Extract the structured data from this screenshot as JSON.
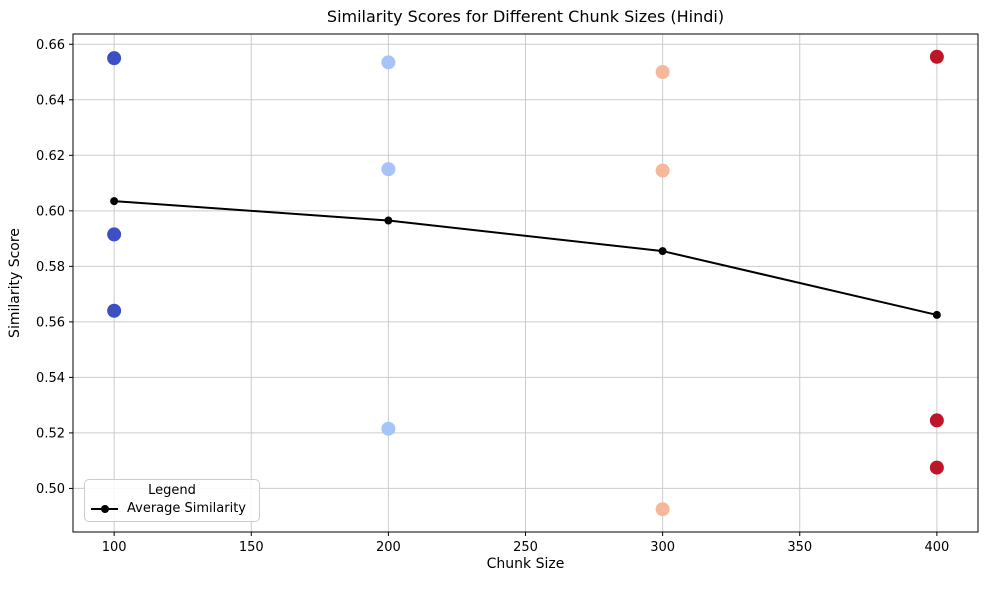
{
  "chart_data": {
    "type": "scatter",
    "title": "Similarity Scores for Different Chunk Sizes (Hindi)",
    "xlabel": "Chunk Size",
    "ylabel": "Similarity Score",
    "xlim": [
      85,
      415
    ],
    "ylim": [
      0.4843,
      0.6637
    ],
    "x_ticks": [
      100,
      150,
      200,
      250,
      300,
      350,
      400
    ],
    "y_ticks": [
      0.5,
      0.52,
      0.54,
      0.56,
      0.58,
      0.6,
      0.62,
      0.64,
      0.66
    ],
    "grid": true,
    "colors": {
      "grid": "#cccccc",
      "spine": "#000000",
      "text": "#000000",
      "background": "#ffffff"
    },
    "legend": {
      "title": "Legend",
      "position": "lower left",
      "entries": [
        {
          "label": "Average Similarity",
          "color": "#000000",
          "marker": "circle-on-line"
        }
      ]
    },
    "series": [
      {
        "name": "chunk-size-100",
        "type": "scatter",
        "color": "#3d50c3",
        "x": [
          100,
          100,
          100
        ],
        "y": [
          0.655,
          0.5915,
          0.564
        ]
      },
      {
        "name": "chunk-size-200",
        "type": "scatter",
        "color": "#a6c4f7",
        "x": [
          200,
          200,
          200
        ],
        "y": [
          0.6535,
          0.615,
          0.5215
        ]
      },
      {
        "name": "chunk-size-300",
        "type": "scatter",
        "color": "#f5b89a",
        "x": [
          300,
          300,
          300
        ],
        "y": [
          0.65,
          0.6145,
          0.4925
        ]
      },
      {
        "name": "chunk-size-400",
        "type": "scatter",
        "color": "#bd1629",
        "x": [
          400,
          400,
          400
        ],
        "y": [
          0.6555,
          0.5245,
          0.5075
        ]
      }
    ],
    "average_line": {
      "name": "Average Similarity",
      "color": "#000000",
      "x": [
        100,
        200,
        300,
        400
      ],
      "y": [
        0.6035,
        0.5965,
        0.5855,
        0.5625
      ]
    }
  }
}
